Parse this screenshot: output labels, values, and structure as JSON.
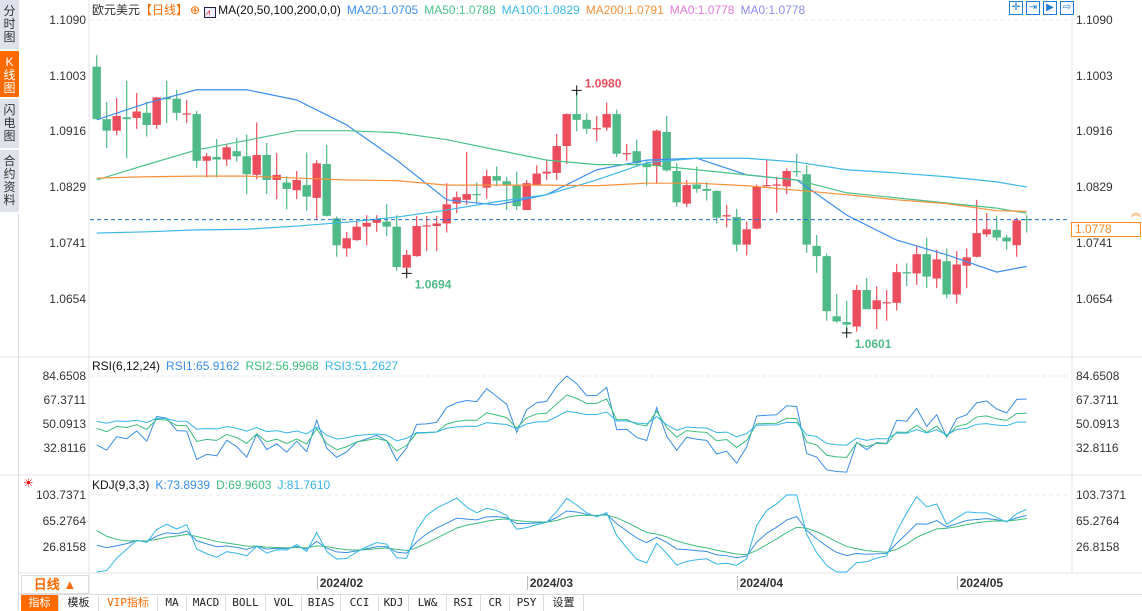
{
  "side_tabs": [
    {
      "label": "分时图"
    },
    {
      "label": "K线图",
      "active": true
    },
    {
      "label": "闪电图"
    },
    {
      "label": "合约资料"
    }
  ],
  "header": {
    "symbol": "欧元美元",
    "period_tag": "【日线】",
    "ma_params": "MA(20,50,100,200,0,0)",
    "legend": [
      {
        "text": "MA20:1.0705",
        "color": "#3d8ef0"
      },
      {
        "text": "MA50:1.0788",
        "color": "#4cc38a"
      },
      {
        "text": "MA100:1.0829",
        "color": "#3cb8e8"
      },
      {
        "text": "MA200:1.0791",
        "color": "#f7913d"
      },
      {
        "text": "MA0:1.0778",
        "color": "#e67ad9"
      },
      {
        "text": "MA0:1.0778",
        "color": "#8c8cf5"
      }
    ]
  },
  "toolbar_icons": [
    "crosshair-icon",
    "zoom-in-icon",
    "zoom-out-icon",
    "scroll-to-end-icon"
  ],
  "price_axis": {
    "ticks": [
      "1.1090",
      "1.1003",
      "1.0916",
      "1.0829",
      "1.0741",
      "1.0654"
    ],
    "current": "1.0778",
    "current_value": 1.0778
  },
  "rsi": {
    "params": "RSI(6,12,24)",
    "legend": [
      {
        "text": "RSI1:65.9162",
        "color": "#3a8ee6"
      },
      {
        "text": "RSI2:56.9968",
        "color": "#3dbd7d"
      },
      {
        "text": "RSI3:51.2627",
        "color": "#35b5e8"
      }
    ],
    "ticks": [
      "84.6508",
      "67.3711",
      "50.0913",
      "32.8116"
    ]
  },
  "kdj": {
    "params": "KDJ(9,3,3)",
    "legend": [
      {
        "text": "K:73.8939",
        "color": "#3a8ee6"
      },
      {
        "text": "D:69.9603",
        "color": "#3dbd7d"
      },
      {
        "text": "J:81.7610",
        "color": "#35b5e8"
      }
    ],
    "ticks": [
      "103.7371",
      "65.2764",
      "26.8158"
    ]
  },
  "period_button": "日线 ▲",
  "date_ticks": [
    {
      "label": "2024/02",
      "index": 23
    },
    {
      "label": "2024/03",
      "index": 44
    },
    {
      "label": "2024/04",
      "index": 65
    },
    {
      "label": "2024/05",
      "index": 87
    }
  ],
  "bottom_tabs": [
    {
      "label": "指标",
      "active": true
    },
    {
      "label": "模板"
    },
    {
      "label": "VIP指标",
      "vip": true
    },
    {
      "label": "MA"
    },
    {
      "label": "MACD"
    },
    {
      "label": "BOLL"
    },
    {
      "label": "VOL"
    },
    {
      "label": "BIAS"
    },
    {
      "label": "CCI"
    },
    {
      "label": "KDJ"
    },
    {
      "label": "LW&"
    },
    {
      "label": "RSI"
    },
    {
      "label": "CR"
    },
    {
      "label": "PSY"
    },
    {
      "label": "设置"
    }
  ],
  "colors": {
    "up": "#eb4d5c",
    "down": "#4fb987",
    "accent": "#ff6a00"
  },
  "chart_data": {
    "type": "candlestick",
    "ylim": [
      1.0566,
      1.1109
    ],
    "candles_ohlc": [
      [
        1.1017,
        1.1035,
        1.0935,
        1.0935
      ],
      [
        1.0935,
        1.0962,
        1.089,
        1.0917
      ],
      [
        1.0917,
        1.0968,
        1.091,
        1.094
      ],
      [
        1.0938,
        1.0995,
        1.0874,
        1.0935
      ],
      [
        1.0937,
        1.0976,
        1.092,
        1.0947
      ],
      [
        1.0945,
        1.0963,
        1.0908,
        1.0926
      ],
      [
        1.0926,
        1.097,
        1.092,
        1.0969
      ],
      [
        1.0969,
        1.0995,
        1.0929,
        1.0966
      ],
      [
        1.0967,
        1.0981,
        1.0933,
        1.0945
      ],
      [
        1.0943,
        1.0965,
        1.0929,
        1.0944
      ],
      [
        1.0943,
        1.0948,
        1.0859,
        1.087
      ],
      [
        1.087,
        1.0882,
        1.0844,
        1.0877
      ],
      [
        1.0876,
        1.0904,
        1.0844,
        1.0872
      ],
      [
        1.0872,
        1.0895,
        1.0862,
        1.0891
      ],
      [
        1.0885,
        1.0906,
        1.0869,
        1.0877
      ],
      [
        1.0877,
        1.0911,
        1.0818,
        1.0849
      ],
      [
        1.0848,
        1.093,
        1.0841,
        1.0879
      ],
      [
        1.0879,
        1.0898,
        1.0818,
        1.084
      ],
      [
        1.084,
        1.0882,
        1.081,
        1.0848
      ],
      [
        1.0836,
        1.0846,
        1.0794,
        1.0826
      ],
      [
        1.0824,
        1.0854,
        1.081,
        1.084
      ],
      [
        1.0832,
        1.0883,
        1.0792,
        1.0814
      ],
      [
        1.0812,
        1.0871,
        1.0777,
        1.0866
      ],
      [
        1.0865,
        1.0895,
        1.0783,
        1.0784
      ],
      [
        1.078,
        1.0783,
        1.072,
        1.0738
      ],
      [
        1.0733,
        1.0759,
        1.072,
        1.0749
      ],
      [
        1.0746,
        1.0777,
        1.0745,
        1.0767
      ],
      [
        1.0767,
        1.0785,
        1.0738,
        1.0773
      ],
      [
        1.0773,
        1.0785,
        1.0759,
        1.0779
      ],
      [
        1.0775,
        1.0802,
        1.0752,
        1.0767
      ],
      [
        1.0767,
        1.0785,
        1.0698,
        1.0704
      ],
      [
        1.0703,
        1.0731,
        1.0694,
        1.0723
      ],
      [
        1.0721,
        1.0784,
        1.072,
        1.0768
      ],
      [
        1.0768,
        1.0784,
        1.0729,
        1.0769
      ],
      [
        1.0768,
        1.0784,
        1.0729,
        1.0772
      ],
      [
        1.0772,
        1.0835,
        1.0758,
        1.0802
      ],
      [
        1.0803,
        1.0822,
        1.0788,
        1.0813
      ],
      [
        1.0809,
        1.0884,
        1.0801,
        1.0818
      ],
      [
        1.0818,
        1.0836,
        1.0803,
        1.0817
      ],
      [
        1.0828,
        1.0856,
        1.0811,
        1.0846
      ],
      [
        1.0846,
        1.0861,
        1.083,
        1.0839
      ],
      [
        1.0838,
        1.0845,
        1.0793,
        1.0832
      ],
      [
        1.0832,
        1.0853,
        1.0793,
        1.0799
      ],
      [
        1.0793,
        1.084,
        1.0793,
        1.0835
      ],
      [
        1.0832,
        1.0863,
        1.0832,
        1.085
      ],
      [
        1.085,
        1.0872,
        1.084,
        1.0853
      ],
      [
        1.0851,
        1.0912,
        1.084,
        1.0893
      ],
      [
        1.0893,
        1.0944,
        1.0865,
        1.0943
      ],
      [
        1.0943,
        1.098,
        1.0916,
        1.0934
      ],
      [
        1.0934,
        1.0944,
        1.0912,
        1.092
      ],
      [
        1.092,
        1.094,
        1.09,
        1.0921
      ],
      [
        1.0922,
        1.0961,
        1.0917,
        1.0943
      ],
      [
        1.0943,
        1.095,
        1.0876,
        1.0881
      ],
      [
        1.0881,
        1.0896,
        1.087,
        1.0882
      ],
      [
        1.0885,
        1.0903,
        1.0862,
        1.0866
      ],
      [
        1.0866,
        1.0872,
        1.0831,
        1.086
      ],
      [
        1.0862,
        1.0919,
        1.0834,
        1.0917
      ],
      [
        1.0915,
        1.094,
        1.0853,
        1.0855
      ],
      [
        1.0854,
        1.0866,
        1.0798,
        1.0805
      ],
      [
        1.0803,
        1.084,
        1.0798,
        1.0832
      ],
      [
        1.0833,
        1.0861,
        1.082,
        1.0826
      ],
      [
        1.0826,
        1.0837,
        1.0808,
        1.0823
      ],
      [
        1.0823,
        1.0824,
        1.0772,
        1.0781
      ],
      [
        1.0783,
        1.0801,
        1.0766,
        1.0785
      ],
      [
        1.0782,
        1.0795,
        1.0728,
        1.0739
      ],
      [
        1.0739,
        1.0775,
        1.0722,
        1.0763
      ],
      [
        1.0764,
        1.0833,
        1.0763,
        1.083
      ],
      [
        1.0831,
        1.0872,
        1.083,
        1.0832
      ],
      [
        1.0831,
        1.0845,
        1.0789,
        1.0833
      ],
      [
        1.083,
        1.0858,
        1.0818,
        1.0854
      ],
      [
        1.0854,
        1.0881,
        1.0845,
        1.0853
      ],
      [
        1.0849,
        1.0863,
        1.0726,
        1.0739
      ],
      [
        1.0737,
        1.0754,
        1.0695,
        1.0721
      ],
      [
        1.0721,
        1.0725,
        1.062,
        1.0635
      ],
      [
        1.0627,
        1.0662,
        1.0617,
        1.0619
      ],
      [
        1.0618,
        1.0651,
        1.0601,
        1.0614
      ],
      [
        1.0611,
        1.0676,
        1.0603,
        1.0668
      ],
      [
        1.0668,
        1.0687,
        1.0638,
        1.0638
      ],
      [
        1.0638,
        1.0674,
        1.0607,
        1.0652
      ],
      [
        1.0648,
        1.0668,
        1.062,
        1.0649
      ],
      [
        1.0648,
        1.0709,
        1.0636,
        1.0696
      ],
      [
        1.0696,
        1.071,
        1.0674,
        1.0694
      ],
      [
        1.0694,
        1.0737,
        1.0676,
        1.0724
      ],
      [
        1.0724,
        1.075,
        1.0671,
        1.0689
      ],
      [
        1.0686,
        1.0731,
        1.0671,
        1.0716
      ],
      [
        1.0713,
        1.0733,
        1.0655,
        1.0661
      ],
      [
        1.0661,
        1.0729,
        1.0647,
        1.0708
      ],
      [
        1.0706,
        1.0733,
        1.0671,
        1.0719
      ],
      [
        1.072,
        1.0809,
        1.0719,
        1.0757
      ],
      [
        1.0755,
        1.0788,
        1.0751,
        1.0763
      ],
      [
        1.0762,
        1.0784,
        1.0745,
        1.075
      ],
      [
        1.075,
        1.0754,
        1.0731,
        1.0744
      ],
      [
        1.0738,
        1.0781,
        1.072,
        1.0777
      ],
      [
        1.0779,
        1.0785,
        1.0758,
        1.0778
      ]
    ],
    "ma_lines": [
      {
        "name": "MA20",
        "color": "#3d8ef0",
        "points": [
          [
            1,
            1.0934
          ],
          [
            6,
            1.096
          ],
          [
            11,
            1.0981
          ],
          [
            16,
            1.0981
          ],
          [
            21,
            1.0965
          ],
          [
            26,
            1.0926
          ],
          [
            31,
            1.0871
          ],
          [
            36,
            1.0809
          ],
          [
            41,
            1.0801
          ],
          [
            46,
            1.0817
          ],
          [
            51,
            1.0856
          ],
          [
            56,
            1.0871
          ],
          [
            61,
            1.0874
          ],
          [
            66,
            1.0848
          ],
          [
            71,
            1.084
          ],
          [
            76,
            1.0785
          ],
          [
            81,
            1.0746
          ],
          [
            86,
            1.0723
          ],
          [
            91,
            1.0696
          ],
          [
            94,
            1.0705
          ]
        ]
      },
      {
        "name": "MA50",
        "color": "#4cc38a",
        "points": [
          [
            1,
            1.084
          ],
          [
            6,
            1.0864
          ],
          [
            11,
            1.0887
          ],
          [
            16,
            1.0902
          ],
          [
            21,
            1.0917
          ],
          [
            26,
            1.0917
          ],
          [
            31,
            1.0914
          ],
          [
            36,
            1.0903
          ],
          [
            41,
            1.0887
          ],
          [
            46,
            1.0871
          ],
          [
            51,
            1.0864
          ],
          [
            56,
            1.0864
          ],
          [
            61,
            1.0856
          ],
          [
            66,
            1.0848
          ],
          [
            71,
            1.084
          ],
          [
            76,
            1.082
          ],
          [
            81,
            1.0812
          ],
          [
            86,
            1.0804
          ],
          [
            91,
            1.0796
          ],
          [
            94,
            1.0788
          ]
        ]
      },
      {
        "name": "MA100",
        "color": "#3cb8e8",
        "points": [
          [
            1,
            1.0757
          ],
          [
            6,
            1.0759
          ],
          [
            11,
            1.0762
          ],
          [
            16,
            1.0763
          ],
          [
            21,
            1.0768
          ],
          [
            26,
            1.0774
          ],
          [
            31,
            1.0782
          ],
          [
            36,
            1.0793
          ],
          [
            41,
            1.0806
          ],
          [
            46,
            1.0817
          ],
          [
            51,
            1.084
          ],
          [
            56,
            1.0867
          ],
          [
            61,
            1.0874
          ],
          [
            66,
            1.0874
          ],
          [
            71,
            1.0868
          ],
          [
            76,
            1.0856
          ],
          [
            81,
            1.0851
          ],
          [
            86,
            1.0845
          ],
          [
            91,
            1.0837
          ],
          [
            94,
            1.0829
          ]
        ]
      },
      {
        "name": "MA200",
        "color": "#f7913d",
        "points": [
          [
            1,
            1.0843
          ],
          [
            6,
            1.0845
          ],
          [
            11,
            1.0846
          ],
          [
            16,
            1.0846
          ],
          [
            21,
            1.0843
          ],
          [
            26,
            1.084
          ],
          [
            31,
            1.0839
          ],
          [
            36,
            1.0832
          ],
          [
            41,
            1.0832
          ],
          [
            46,
            1.0832
          ],
          [
            51,
            1.0831
          ],
          [
            56,
            1.0835
          ],
          [
            61,
            1.0835
          ],
          [
            66,
            1.0831
          ],
          [
            71,
            1.0824
          ],
          [
            76,
            1.0817
          ],
          [
            81,
            1.0809
          ],
          [
            86,
            1.0803
          ],
          [
            91,
            1.0792
          ],
          [
            94,
            1.0791
          ]
        ]
      }
    ],
    "annotations": [
      {
        "text": "1.0980",
        "index": 49,
        "value": 1.098,
        "kind": "high",
        "color": "#eb4d5c"
      },
      {
        "text": "1.0694",
        "index": 32,
        "value": 1.0694,
        "kind": "low",
        "color": "#4fb987"
      },
      {
        "text": "1.0601",
        "index": 76,
        "value": 1.0601,
        "kind": "low",
        "color": "#4fb987"
      }
    ],
    "rsi_range": [
      14.09,
      94.73
    ],
    "kdj_range": [
      -7.2,
      128.9
    ]
  }
}
